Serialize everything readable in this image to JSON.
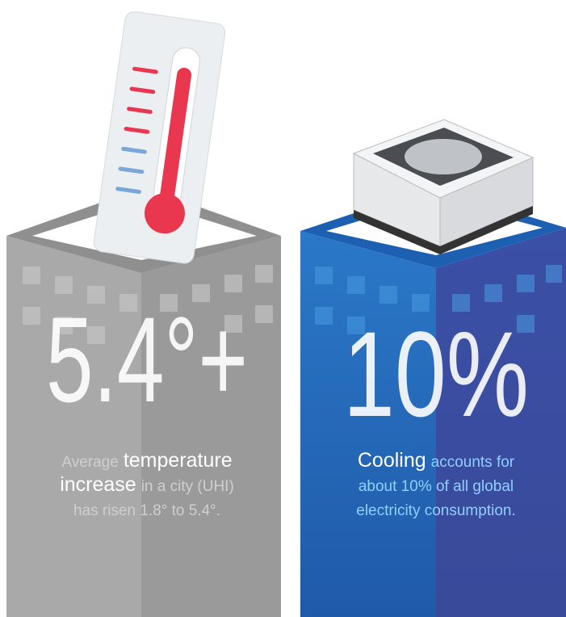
{
  "panels": [
    {
      "stat": "5.4°+",
      "caption_lines": [
        [
          {
            "text": "Average",
            "style": "normal"
          },
          {
            "text": "temperature",
            "style": "strong"
          }
        ],
        [
          {
            "text": "increase",
            "style": "strong"
          },
          {
            "text": "in a city (UHI)",
            "style": "normal"
          }
        ],
        [
          {
            "text": "has risen 1.8° to 5.4°.",
            "style": "normal"
          }
        ]
      ]
    },
    {
      "stat": "10%",
      "caption_lines": [
        [
          {
            "text": "Cooling",
            "style": "strong"
          },
          {
            "text": "accounts for",
            "style": "normal"
          }
        ],
        [
          {
            "text": "about 10% of all global",
            "style": "normal"
          }
        ],
        [
          {
            "text": "electricity consumption.",
            "style": "normal"
          }
        ]
      ]
    }
  ]
}
